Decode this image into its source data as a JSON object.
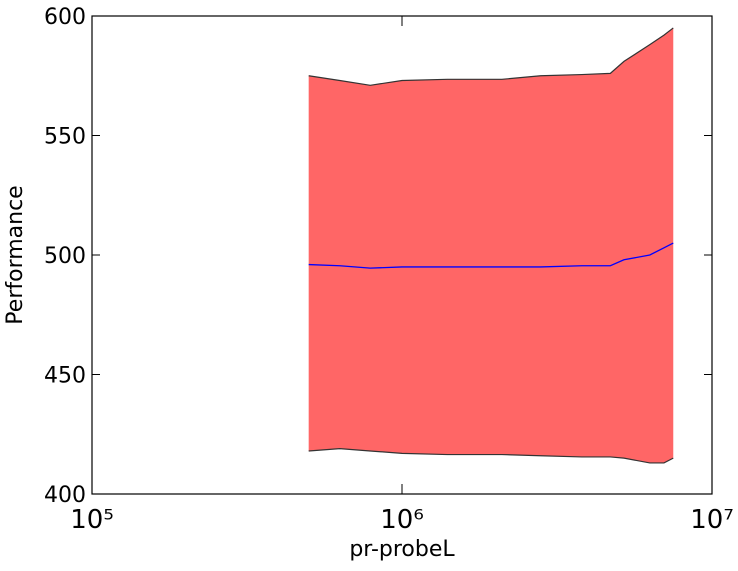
{
  "chart_data": {
    "type": "band",
    "xlabel": "pr-probeL",
    "ylabel": "Performance",
    "x": [
      500000,
      630000,
      790000,
      1000000,
      1400000,
      2100000,
      2800000,
      3800000,
      4700000,
      5200000,
      6300000,
      7000000,
      7500000
    ],
    "values": [
      496,
      495.5,
      494.5,
      495,
      495,
      495,
      495,
      495.5,
      495.5,
      498,
      500,
      503,
      505
    ],
    "upper": [
      575,
      573,
      571,
      573,
      573.5,
      573.5,
      575,
      575.5,
      576,
      581,
      588,
      592,
      595
    ],
    "lower": [
      418,
      419,
      418,
      417,
      416.5,
      416.5,
      416,
      415.5,
      415.5,
      415,
      413,
      413,
      415
    ],
    "color": "#0000ff",
    "band_color": "#ff6666",
    "edge_color": "#333333",
    "xscale": "log",
    "xlim": [
      100000,
      10000000
    ],
    "xticks": [
      {
        "value": 100000,
        "label": "10⁵"
      },
      {
        "value": 1000000,
        "label": "10⁶"
      },
      {
        "value": 10000000,
        "label": "10⁷"
      }
    ],
    "ylim": [
      400,
      600
    ],
    "yticks": [
      400,
      450,
      500,
      550,
      600
    ]
  }
}
